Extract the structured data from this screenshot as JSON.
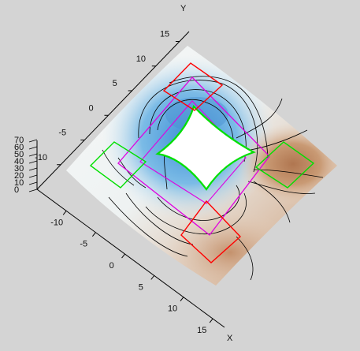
{
  "chart_data": {
    "type": "surface-3d",
    "x_axis": {
      "label": "X",
      "ticks": [
        {
          "value": -10,
          "label": "-10"
        },
        {
          "value": -5,
          "label": "-5"
        },
        {
          "value": 0,
          "label": "0"
        },
        {
          "value": 5,
          "label": "5"
        },
        {
          "value": 10,
          "label": "10"
        },
        {
          "value": 15,
          "label": "15"
        }
      ]
    },
    "y_axis": {
      "label": "Y",
      "ticks": [
        {
          "value": -10,
          "label": "-10"
        },
        {
          "value": -5,
          "label": "-5"
        },
        {
          "value": 0,
          "label": "0"
        },
        {
          "value": 5,
          "label": "5"
        },
        {
          "value": 10,
          "label": "10"
        },
        {
          "value": 15,
          "label": "15"
        }
      ]
    },
    "z_axis": {
      "label": "",
      "ticks": [
        {
          "value": 0,
          "label": "0"
        },
        {
          "value": 10,
          "label": "10"
        },
        {
          "value": 20,
          "label": "20"
        },
        {
          "value": 30,
          "label": "30"
        },
        {
          "value": 40,
          "label": "40"
        },
        {
          "value": 50,
          "label": "50"
        },
        {
          "value": 60,
          "label": "60"
        },
        {
          "value": 70,
          "label": "70"
        }
      ]
    },
    "colors": {
      "background": "#d4d4d4",
      "low": "#5aa6e0",
      "mid": "#f2f4f4",
      "high": "#c8936a",
      "contour": "#000000",
      "electrode_green": "#00e000",
      "electrode_red": "#ff0000",
      "outline_magenta": "#e000e0",
      "axis": "#000000"
    },
    "contour_lines": true
  }
}
